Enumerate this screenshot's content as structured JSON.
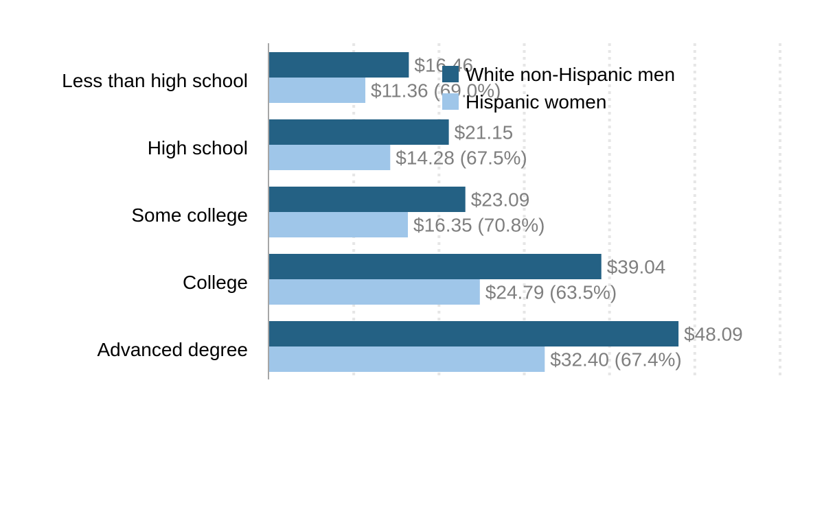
{
  "chart_data": {
    "type": "bar",
    "orientation": "horizontal",
    "categories": [
      "Less than high school",
      "High school",
      "Some college",
      "College",
      "Advanced degree"
    ],
    "series": [
      {
        "name": "White non-Hispanic men",
        "color": "#246184",
        "values": [
          16.46,
          21.15,
          23.09,
          39.04,
          48.09
        ],
        "labels": [
          "$16.46",
          "$21.15",
          "$23.09",
          "$39.04",
          "$48.09"
        ]
      },
      {
        "name": "Hispanic women",
        "color": "#9fc6e9",
        "values": [
          11.36,
          14.28,
          16.35,
          24.79,
          32.4
        ],
        "labels": [
          "$11.36 (69.0%)",
          "$14.28 (67.5%)",
          "$16.35 (70.8%)",
          "$24.79 (63.5%)",
          "$32.40 (67.4%)"
        ]
      }
    ],
    "xlim": [
      0,
      60
    ],
    "grid": true,
    "legend_position": "top-right",
    "colors": {
      "axis": "#a6a6a6",
      "grid": "#e6e6e6",
      "value_label": "#7f7f7f"
    }
  }
}
